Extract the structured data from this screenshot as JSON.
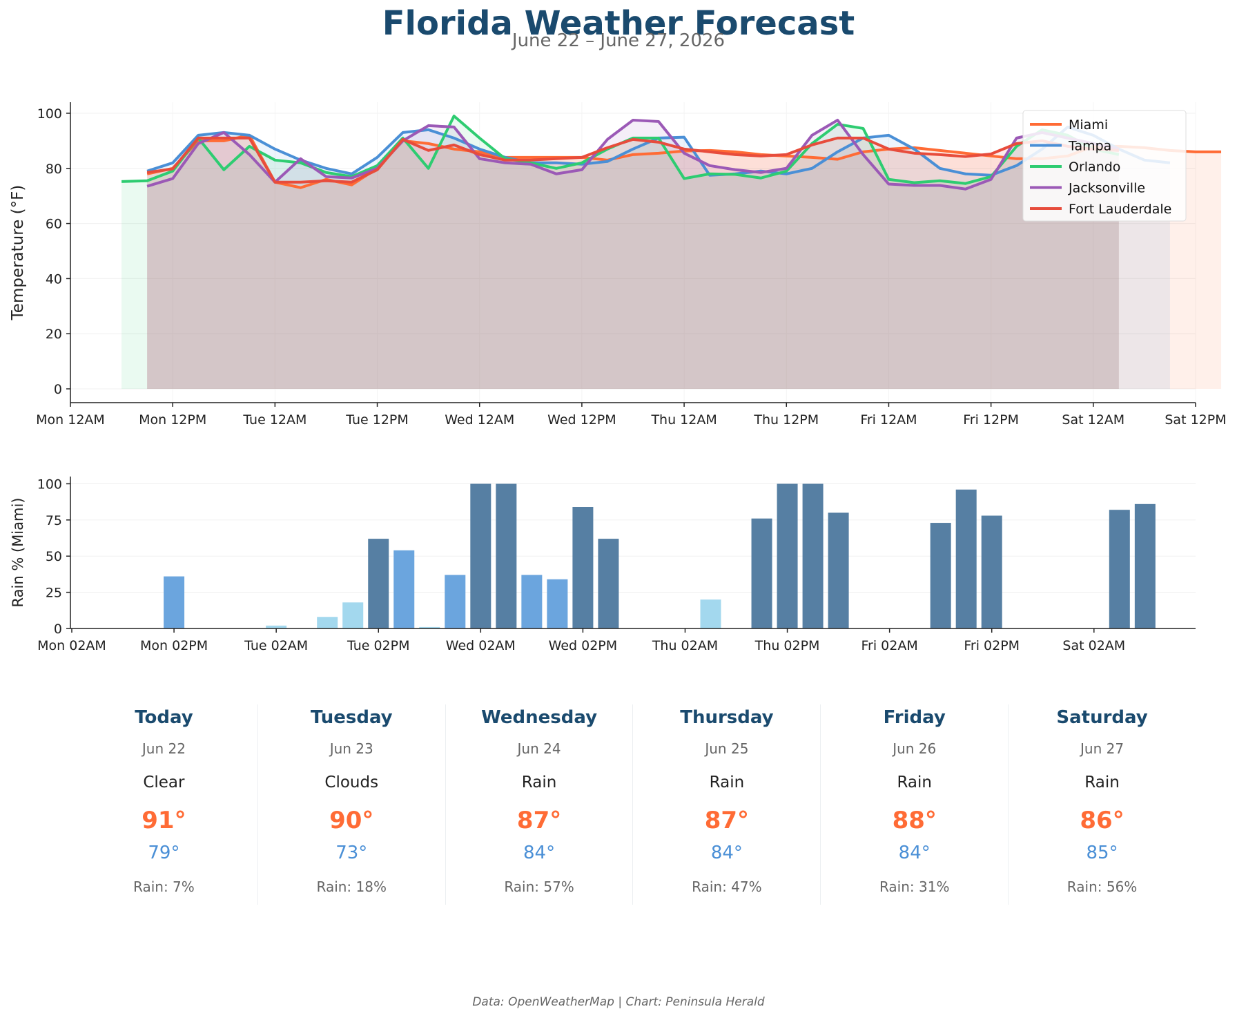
{
  "header": {
    "title": "Florida Weather Forecast",
    "subtitle": "June 22 – June 27, 2026"
  },
  "footer": {
    "source": "Data: OpenWeatherMap | Chart: Peninsula Herald"
  },
  "forecast": [
    {
      "day": "Today",
      "date": "Jun 22",
      "condition": "Clear",
      "high": "91°",
      "low": "79°",
      "rain": "Rain: 7%"
    },
    {
      "day": "Tuesday",
      "date": "Jun 23",
      "condition": "Clouds",
      "high": "90°",
      "low": "73°",
      "rain": "Rain: 18%"
    },
    {
      "day": "Wednesday",
      "date": "Jun 24",
      "condition": "Rain",
      "high": "87°",
      "low": "84°",
      "rain": "Rain: 57%"
    },
    {
      "day": "Thursday",
      "date": "Jun 25",
      "condition": "Rain",
      "high": "87°",
      "low": "84°",
      "rain": "Rain: 47%"
    },
    {
      "day": "Friday",
      "date": "Jun 26",
      "condition": "Rain",
      "high": "88°",
      "low": "84°",
      "rain": "Rain: 31%"
    },
    {
      "day": "Saturday",
      "date": "Jun 27",
      "condition": "Rain",
      "high": "86°",
      "low": "85°",
      "rain": "Rain: 56%"
    }
  ],
  "chart_data": [
    {
      "type": "line",
      "ylabel": "Temperature (°F)",
      "xlabel": "",
      "ylim": [
        -5,
        104
      ],
      "xlim": [
        "Mon 12AM",
        "Sat 12PM"
      ],
      "yticks": [
        0,
        20,
        40,
        60,
        80,
        100
      ],
      "xticks": [
        "Mon 12AM",
        "Mon 12PM",
        "Tue 12AM",
        "Tue 12PM",
        "Wed 12AM",
        "Wed 12PM",
        "Thu 12AM",
        "Thu 12PM",
        "Fri 12AM",
        "Fri 12PM",
        "Sat 12AM",
        "Sat 12PM"
      ],
      "grid": true,
      "area_fill": true,
      "legend_position": "top-right",
      "series": [
        {
          "name": "Miami",
          "color": "#ff6b35",
          "x_start_hours": 9,
          "x_step_hours": 3,
          "values": [
            78,
            80,
            90,
            90,
            92,
            75,
            73,
            76,
            74,
            80,
            90,
            89,
            87,
            86,
            84,
            84,
            84,
            84,
            83,
            85,
            85.5,
            86.3,
            86.5,
            86,
            85,
            84.5,
            84,
            83.3,
            86,
            87,
            87.5,
            86.5,
            85.5,
            84.5,
            83.5,
            83.5,
            84.5,
            88,
            88,
            87.5,
            86.5,
            86,
            86
          ]
        },
        {
          "name": "Tampa",
          "color": "#4a8fd6",
          "x_start_hours": 9,
          "x_step_hours": 3,
          "values": [
            79,
            82,
            92,
            93,
            92,
            87,
            83,
            80,
            78,
            84,
            93,
            94,
            91,
            87,
            84,
            82,
            82,
            81.5,
            82.5,
            87,
            91,
            91.3,
            77.5,
            78,
            79,
            78,
            80,
            86,
            91,
            92,
            87,
            80,
            78,
            77.5,
            81,
            87,
            95,
            92,
            87,
            83,
            82
          ]
        },
        {
          "name": "Orlando",
          "color": "#2ecc71",
          "x_start_hours": 6,
          "x_step_hours": 3,
          "values": [
            75.2,
            75.5,
            79,
            91,
            79.5,
            88,
            83,
            82,
            78.5,
            77,
            81,
            91,
            80,
            99,
            91,
            83.5,
            82,
            80,
            82,
            87,
            91,
            91,
            76.3,
            78,
            77.8,
            76.5,
            79,
            89,
            96,
            94.5,
            76,
            74.8,
            75.5,
            74.5,
            77,
            88,
            94,
            92,
            87,
            85
          ]
        },
        {
          "name": "Jacksonville",
          "color": "#9b59b6",
          "x_start_hours": 9,
          "x_step_hours": 3,
          "values": [
            73.5,
            76.3,
            89,
            93,
            85,
            75,
            83.5,
            77,
            76.5,
            80,
            90,
            95.5,
            95,
            83.5,
            82,
            81.5,
            78,
            79.5,
            90.5,
            97.5,
            97,
            85.5,
            81,
            79.5,
            78.5,
            80,
            92,
            97.5,
            85,
            74.3,
            73.8,
            73.8,
            72.5,
            76,
            91,
            93,
            91,
            89,
            87
          ]
        },
        {
          "name": "Fort Lauderdale",
          "color": "#e74c3c",
          "x_start_hours": 9,
          "x_step_hours": 3,
          "values": [
            78.5,
            79.8,
            91,
            91,
            91,
            75,
            75,
            75.5,
            75,
            79.5,
            90.5,
            86.5,
            88.5,
            85,
            83,
            83,
            83.5,
            84,
            87.5,
            90.5,
            89.5,
            87,
            86,
            85,
            84.5,
            85,
            88.5,
            91,
            91,
            87,
            85.5,
            85,
            84.3,
            85.2,
            89,
            90,
            88,
            87,
            86.5
          ]
        }
      ]
    },
    {
      "type": "bar",
      "ylabel": "Rain % (Miami)",
      "xlabel": "",
      "ylim": [
        0,
        105
      ],
      "yticks": [
        0,
        25,
        50,
        75,
        100
      ],
      "xticks": [
        "Mon 02AM",
        "Mon 02PM",
        "Tue 02AM",
        "Tue 02PM",
        "Wed 02AM",
        "Wed 02PM",
        "Thu 02AM",
        "Thu 02PM",
        "Fri 02AM",
        "Fri 02PM",
        "Sat 02AM"
      ],
      "grid": true,
      "x_start_hours": 2,
      "x_step_hours": 3,
      "color_rule": "below 25 light blue #a3d8ee, 25–59 blue #6ba5de, 60 and above slate #567fa3",
      "values": [
        0,
        0,
        0,
        0,
        36,
        0,
        0,
        0,
        2,
        0,
        8,
        18,
        62,
        54,
        1,
        37,
        100,
        100,
        37,
        34,
        84,
        62,
        0,
        0,
        0,
        20,
        0,
        76,
        100,
        100,
        80,
        0,
        0,
        0,
        73,
        96,
        78,
        0,
        0,
        0,
        0,
        82,
        86
      ]
    }
  ]
}
